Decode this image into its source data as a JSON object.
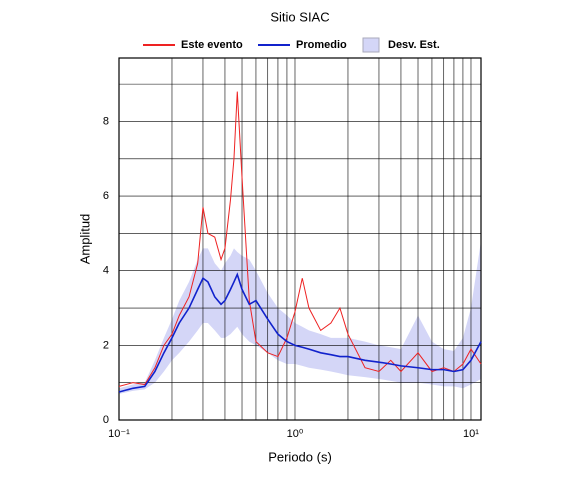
{
  "chart_data": {
    "type": "line",
    "title": "Sitio SIAC",
    "xlabel": "Periodo (s)",
    "ylabel": "Amplitud",
    "xscale": "log",
    "xlim": [
      0.1,
      11.4
    ],
    "ylim": [
      0,
      9.7
    ],
    "xticks": [
      {
        "value": 0.1,
        "label": "10⁻¹"
      },
      {
        "value": 1,
        "label": "10⁰"
      },
      {
        "value": 10,
        "label": "10¹"
      }
    ],
    "x_minor_ticks": [
      0.2,
      0.3,
      0.4,
      0.5,
      0.6,
      0.7,
      0.8,
      0.9,
      2,
      3,
      4,
      5,
      6,
      7,
      8,
      9
    ],
    "yticks": [
      0,
      2,
      4,
      6,
      8
    ],
    "y_minor_ticks": [
      1,
      3,
      5,
      7,
      9
    ],
    "grid": true,
    "x": [
      0.1,
      0.12,
      0.14,
      0.16,
      0.18,
      0.2,
      0.22,
      0.25,
      0.28,
      0.3,
      0.32,
      0.35,
      0.38,
      0.4,
      0.43,
      0.45,
      0.47,
      0.5,
      0.55,
      0.6,
      0.7,
      0.8,
      0.9,
      1.0,
      1.1,
      1.2,
      1.4,
      1.6,
      1.8,
      2.0,
      2.5,
      3,
      3.5,
      4,
      5,
      6,
      7,
      8,
      9,
      10,
      11.4
    ],
    "band": {
      "name": "Desv. Est.",
      "color": "#d4d6f7",
      "lower": [
        0.7,
        0.78,
        0.82,
        1.0,
        1.3,
        1.6,
        1.8,
        2.1,
        2.4,
        2.6,
        2.6,
        2.4,
        2.2,
        2.2,
        2.3,
        2.4,
        2.5,
        2.3,
        2.1,
        2.0,
        1.8,
        1.6,
        1.5,
        1.5,
        1.45,
        1.4,
        1.35,
        1.3,
        1.25,
        1.2,
        1.15,
        1.1,
        1.05,
        1.0,
        1.0,
        0.95,
        0.9,
        0.9,
        0.85,
        0.95,
        1.1
      ],
      "upper": [
        0.85,
        0.95,
        1.0,
        1.6,
        2.2,
        2.7,
        3.2,
        3.7,
        4.3,
        4.6,
        4.6,
        4.2,
        4.0,
        4.2,
        4.4,
        4.6,
        4.5,
        4.4,
        4.3,
        4.0,
        3.4,
        3.0,
        2.8,
        2.6,
        2.5,
        2.4,
        2.3,
        2.2,
        2.2,
        2.2,
        2.1,
        2.0,
        1.95,
        1.9,
        2.8,
        2.1,
        1.9,
        1.85,
        2.2,
        3.0,
        4.8
      ]
    },
    "series": [
      {
        "name": "Este evento",
        "color": "#ee2222",
        "values": [
          0.9,
          1.0,
          0.95,
          1.4,
          2.0,
          2.3,
          2.8,
          3.3,
          4.2,
          5.7,
          5.0,
          4.9,
          4.3,
          4.6,
          5.9,
          7.0,
          8.8,
          6.5,
          3.2,
          2.1,
          1.8,
          1.7,
          2.2,
          2.9,
          3.8,
          3.0,
          2.4,
          2.6,
          3.0,
          2.3,
          1.4,
          1.3,
          1.6,
          1.3,
          1.8,
          1.3,
          1.4,
          1.3,
          1.5,
          1.9,
          1.5
        ]
      },
      {
        "name": "Promedio",
        "color": "#1122cc",
        "values": [
          0.75,
          0.85,
          0.9,
          1.3,
          1.8,
          2.2,
          2.6,
          3.0,
          3.5,
          3.8,
          3.7,
          3.3,
          3.1,
          3.2,
          3.5,
          3.7,
          3.9,
          3.5,
          3.1,
          3.2,
          2.7,
          2.3,
          2.1,
          2.0,
          1.95,
          1.9,
          1.8,
          1.75,
          1.7,
          1.7,
          1.6,
          1.55,
          1.5,
          1.45,
          1.4,
          1.35,
          1.35,
          1.3,
          1.35,
          1.6,
          2.1
        ]
      }
    ]
  }
}
